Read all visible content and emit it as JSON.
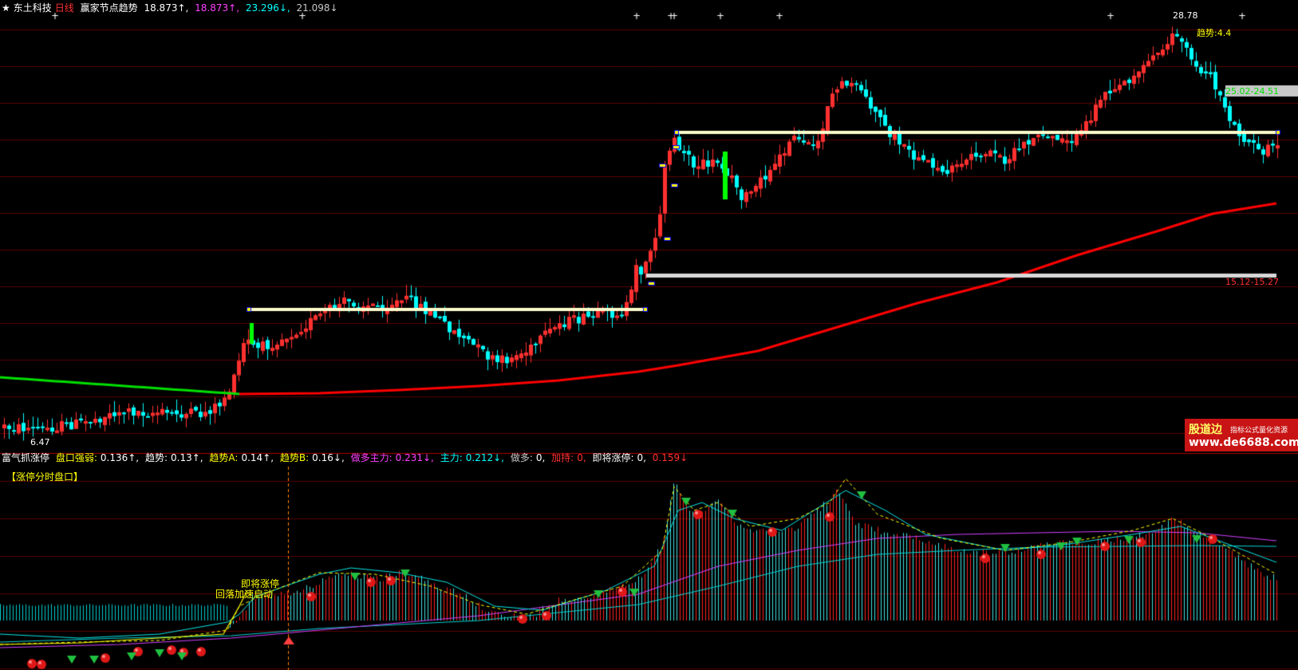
{
  "header": {
    "star": "★",
    "stock_name": "东土科技",
    "period": "日线",
    "indicator_name": "赢家节点趋势",
    "values": [
      {
        "text": "18.873↑,",
        "color": "#ffffff"
      },
      {
        "text": "18.873↑,",
        "color": "#ff40ff"
      },
      {
        "text": "23.296↓,",
        "color": "#00ffff"
      },
      {
        "text": "21.098↓",
        "color": "#c8c8c8"
      }
    ]
  },
  "indicator_header": {
    "name": "富气抓涨停",
    "items": [
      {
        "label": "盘口强弱:",
        "value": "0.136↑,",
        "label_color": "#ffff00",
        "value_color": "#ffffff"
      },
      {
        "label": "趋势:",
        "value": "0.13↑,",
        "label_color": "#ffffff",
        "value_color": "#ffffff"
      },
      {
        "label": "趋势A:",
        "value": "0.14↑,",
        "label_color": "#ffff00",
        "value_color": "#ffffff"
      },
      {
        "label": "趋势B:",
        "value": "0.16↓,",
        "label_color": "#ffff00",
        "value_color": "#ffffff"
      },
      {
        "label": "做多主力:",
        "value": "0.231↓,",
        "label_color": "#ff40ff",
        "value_color": "#ff40ff"
      },
      {
        "label": "主力:",
        "value": "0.212↓,",
        "label_color": "#00ffff",
        "value_color": "#00ffff"
      },
      {
        "label": "做多:",
        "value": "0,",
        "label_color": "#c8c8c8",
        "value_color": "#ffffff"
      },
      {
        "label": "加持:",
        "value": "0,",
        "label_color": "#ff3030",
        "value_color": "#ff3030"
      },
      {
        "label": "即将涨停:",
        "value": "0,",
        "label_color": "#ffffff",
        "value_color": "#ffffff"
      },
      {
        "label": "",
        "value": "0.159↓",
        "label_color": "#ffffff",
        "value_color": "#ff3030"
      }
    ]
  },
  "sub_label": "【涨停分时盘口】",
  "annotations": {
    "high_price": "28.78",
    "low_price": "6.47",
    "trend_label": "趋势:4.4",
    "upper_zone": "25.02-24.51",
    "lower_zone": "15.12-15.27",
    "signal_1": "即将涨停",
    "signal_2": "回落加速启动"
  },
  "watermark": {
    "brand": "股道边",
    "slogan": "指标公式量化资源",
    "url": "www.de6688.com"
  },
  "colors": {
    "up": "#ff3030",
    "down": "#00ffff",
    "ma": "#ff0000",
    "ma_early": "#00e000",
    "support": "#ffffcc",
    "grid": "#5a0000"
  },
  "chart_data": {
    "type": "candlestick",
    "price_range": [
      6.47,
      28.78
    ],
    "high": 28.78,
    "low": 6.47,
    "current_trend": 4.4,
    "resistance_zone": [
      25.02,
      24.51
    ],
    "support_zone": [
      15.12,
      15.27
    ],
    "indicator_values": {
      "盘口强弱": 0.136,
      "趋势": 0.13,
      "趋势A": 0.14,
      "趋势B": 0.16,
      "做多主力": 0.231,
      "主力": 0.212,
      "做多": 0,
      "加持": 0,
      "即将涨停": 0,
      "extra": 0.159
    }
  }
}
